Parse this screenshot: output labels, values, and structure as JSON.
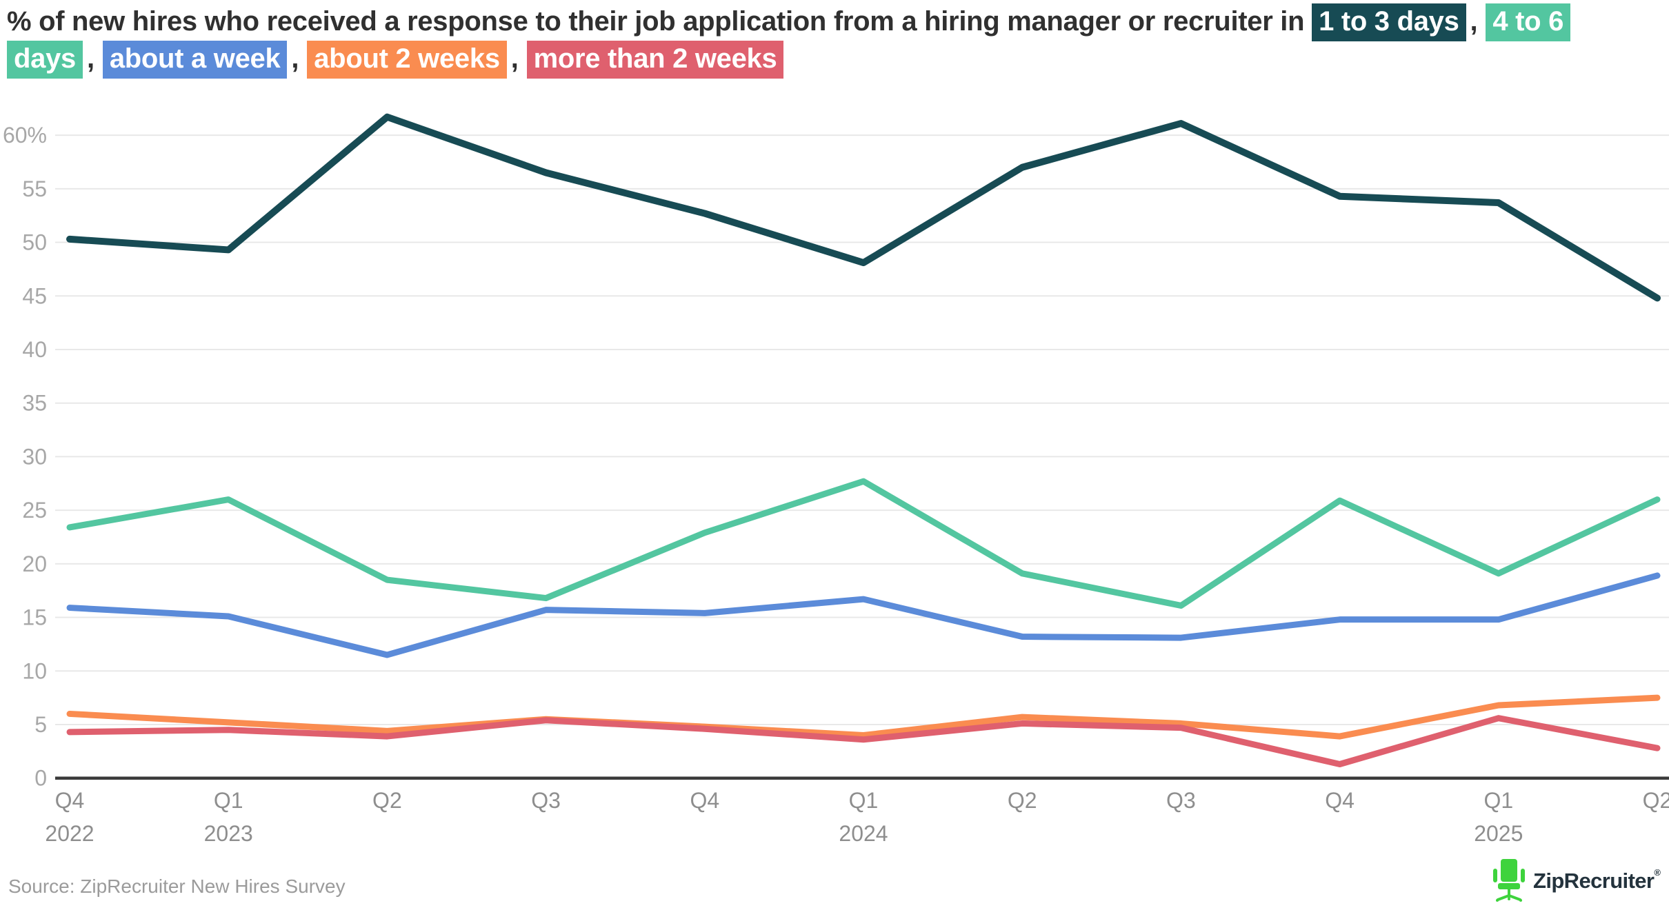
{
  "title": {
    "prefix": "% of new hires who received a response to their job application from a hiring manager or recruiter in",
    "separator": ","
  },
  "legend": [
    {
      "label": "1 to 3 days",
      "color": "#174b54"
    },
    {
      "label": "4 to 6 days",
      "color": "#53c6a0"
    },
    {
      "label": "about a week",
      "color": "#5b8bd9"
    },
    {
      "label": "about 2 weeks",
      "color": "#fa8c50"
    },
    {
      "label": "more than 2 weeks",
      "color": "#df606e"
    }
  ],
  "chart_data": {
    "type": "line",
    "categories": [
      "Q4 2022",
      "Q1 2023",
      "Q2 2023",
      "Q3 2023",
      "Q4 2023",
      "Q1 2024",
      "Q2 2024",
      "Q3 2024",
      "Q4 2024",
      "Q1 2025",
      "Q2 2025"
    ],
    "x_labels": [
      {
        "q": "Q4",
        "year": "2022"
      },
      {
        "q": "Q1",
        "year": "2023"
      },
      {
        "q": "Q2"
      },
      {
        "q": "Q3"
      },
      {
        "q": "Q4"
      },
      {
        "q": "Q1",
        "year": "2024"
      },
      {
        "q": "Q2"
      },
      {
        "q": "Q3"
      },
      {
        "q": "Q4"
      },
      {
        "q": "Q1",
        "year": "2025"
      },
      {
        "q": "Q2"
      }
    ],
    "series": [
      {
        "name": "1 to 3 days",
        "color": "#174b54",
        "width": 10,
        "values": [
          50.3,
          49.3,
          61.7,
          56.5,
          52.7,
          48.1,
          57.0,
          61.1,
          54.3,
          53.7,
          44.8
        ]
      },
      {
        "name": "4 to 6 days",
        "color": "#53c6a0",
        "width": 9,
        "values": [
          23.4,
          26.0,
          18.5,
          16.8,
          22.9,
          27.7,
          19.1,
          16.1,
          25.9,
          19.1,
          26.0
        ]
      },
      {
        "name": "about a week",
        "color": "#5b8bd9",
        "width": 9,
        "values": [
          15.9,
          15.1,
          11.5,
          15.7,
          15.4,
          16.7,
          13.2,
          13.1,
          14.8,
          14.8,
          18.9
        ]
      },
      {
        "name": "about 2 weeks",
        "color": "#fa8c50",
        "width": 9,
        "values": [
          6.0,
          5.2,
          4.4,
          5.5,
          4.8,
          4.0,
          5.7,
          5.1,
          3.9,
          6.8,
          7.5
        ]
      },
      {
        "name": "more than 2 weeks",
        "color": "#df606e",
        "width": 9,
        "values": [
          4.3,
          4.5,
          3.9,
          5.4,
          4.6,
          3.6,
          5.1,
          4.7,
          1.3,
          5.6,
          2.8
        ]
      }
    ],
    "yticks": [
      {
        "v": 60,
        "label": "60%"
      },
      {
        "v": 55,
        "label": "55"
      },
      {
        "v": 50,
        "label": "50"
      },
      {
        "v": 45,
        "label": "45"
      },
      {
        "v": 40,
        "label": "40"
      },
      {
        "v": 35,
        "label": "35"
      },
      {
        "v": 30,
        "label": "30"
      },
      {
        "v": 25,
        "label": "25"
      },
      {
        "v": 20,
        "label": "20"
      },
      {
        "v": 15,
        "label": "15"
      },
      {
        "v": 10,
        "label": "10"
      },
      {
        "v": 5,
        "label": "5"
      },
      {
        "v": 0,
        "label": "0"
      }
    ],
    "ylim": [
      0,
      62
    ],
    "grid": true,
    "legend_position": "in-title",
    "colors": {
      "gridline": "#e8e8e8",
      "zero_line": "#3b3b3b",
      "ytick_text": "#a7a7a7",
      "xtick_text": "#8e8e8e"
    }
  },
  "footer": {
    "source": "Source: ZipRecruiter New Hires Survey",
    "logo_text": "ZipRecruiter",
    "logo_reg": "®",
    "logo_icon_color": "#3ed33d",
    "logo_text_color": "#24333d"
  }
}
